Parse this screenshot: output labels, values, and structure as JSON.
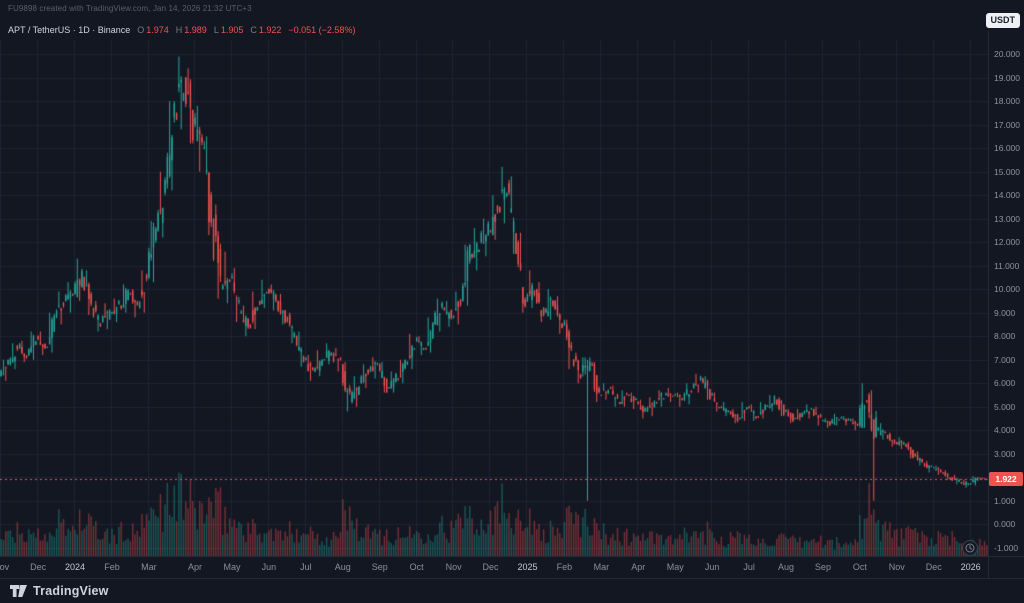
{
  "header": {
    "watermark": "FU9898 created with TradingView.com, Jan 14, 2026 21:32 UTC+3",
    "legend_title": "APT / TetherUS · 1D · Binance",
    "ohlc": {
      "o_label": "O",
      "o": "1.974",
      "h_label": "H",
      "h": "1.989",
      "l_label": "L",
      "l": "1.905",
      "c_label": "C",
      "c": "1.922",
      "change": "−0.051 (−2.58%)"
    },
    "currency_button": "USDT"
  },
  "footer": {
    "brand": "TradingView"
  },
  "colors": {
    "background": "#131722",
    "grid": "#1e2433",
    "up": "#26a69a",
    "down": "#ef5350",
    "volume_up": "rgba(38,166,154,0.45)",
    "volume_down": "rgba(239,83,80,0.45)",
    "axis_text": "#8f94a1",
    "last_price": "#ef5350"
  },
  "chart_data": {
    "type": "candlestick",
    "symbol": "APT/USDT",
    "interval_shown": "1D",
    "sampling": "weekly approximation of the daily candles visible in the screenshot",
    "last_price": "1.922",
    "last_price_value": 1.922,
    "y_axis": {
      "min": -1.35,
      "max": 20.6,
      "tick_step": 1,
      "ticks": [
        {
          "value": 20,
          "label": "20.000"
        },
        {
          "value": 19,
          "label": "19.000"
        },
        {
          "value": 18,
          "label": "18.000"
        },
        {
          "value": 17,
          "label": "17.000"
        },
        {
          "value": 16,
          "label": "16.000"
        },
        {
          "value": 15,
          "label": "15.000"
        },
        {
          "value": 14,
          "label": "14.000"
        },
        {
          "value": 13,
          "label": "13.000"
        },
        {
          "value": 12,
          "label": "12.000"
        },
        {
          "value": 11,
          "label": "11.000"
        },
        {
          "value": 10,
          "label": "10.000"
        },
        {
          "value": 9,
          "label": "9.000"
        },
        {
          "value": 8,
          "label": "8.000"
        },
        {
          "value": 7,
          "label": "7.000"
        },
        {
          "value": 6,
          "label": "6.000"
        },
        {
          "value": 5,
          "label": "5.000"
        },
        {
          "value": 4,
          "label": "4.000"
        },
        {
          "value": 3,
          "label": "3.000"
        },
        {
          "value": 2,
          "label": "2.000"
        },
        {
          "value": 1,
          "label": "1.000"
        },
        {
          "value": 0,
          "label": "0.000"
        },
        {
          "value": -1,
          "label": "-1.000"
        }
      ]
    },
    "x_axis": {
      "months": [
        {
          "label": "Nov",
          "i": 0,
          "year": false
        },
        {
          "label": "Dec",
          "i": 4,
          "year": false
        },
        {
          "label": "2024",
          "i": 8,
          "year": true
        },
        {
          "label": "Feb",
          "i": 12,
          "year": false
        },
        {
          "label": "Mar",
          "i": 16,
          "year": false
        },
        {
          "label": "Apr",
          "i": 21,
          "year": false
        },
        {
          "label": "May",
          "i": 25,
          "year": false
        },
        {
          "label": "Jun",
          "i": 29,
          "year": false
        },
        {
          "label": "Jul",
          "i": 33,
          "year": false
        },
        {
          "label": "Aug",
          "i": 37,
          "year": false
        },
        {
          "label": "Sep",
          "i": 41,
          "year": false
        },
        {
          "label": "Oct",
          "i": 45,
          "year": false
        },
        {
          "label": "Nov",
          "i": 49,
          "year": false
        },
        {
          "label": "Dec",
          "i": 53,
          "year": false
        },
        {
          "label": "2025",
          "i": 57,
          "year": true
        },
        {
          "label": "Feb",
          "i": 61,
          "year": false
        },
        {
          "label": "Mar",
          "i": 65,
          "year": false
        },
        {
          "label": "Apr",
          "i": 69,
          "year": false
        },
        {
          "label": "May",
          "i": 73,
          "year": false
        },
        {
          "label": "Jun",
          "i": 77,
          "year": false
        },
        {
          "label": "Jul",
          "i": 81,
          "year": false
        },
        {
          "label": "Aug",
          "i": 85,
          "year": false
        },
        {
          "label": "Sep",
          "i": 89,
          "year": false
        },
        {
          "label": "Oct",
          "i": 93,
          "year": false
        },
        {
          "label": "Nov",
          "i": 97,
          "year": false
        },
        {
          "label": "Dec",
          "i": 101,
          "year": false
        },
        {
          "label": "2026",
          "i": 105,
          "year": true
        }
      ]
    },
    "candles": [
      [
        6.3,
        7.0,
        6.1,
        6.8,
        30
      ],
      [
        6.8,
        7.7,
        6.6,
        7.5,
        35
      ],
      [
        7.5,
        7.8,
        6.9,
        7.2,
        28
      ],
      [
        7.2,
        8.2,
        7.0,
        8.0,
        40
      ],
      [
        8.0,
        8.2,
        7.2,
        7.5,
        32
      ],
      [
        7.5,
        9.0,
        7.3,
        8.8,
        45
      ],
      [
        8.8,
        9.9,
        8.5,
        9.5,
        50
      ],
      [
        9.5,
        10.3,
        9.0,
        9.8,
        42
      ],
      [
        9.8,
        11.3,
        9.5,
        10.5,
        55
      ],
      [
        10.5,
        10.8,
        8.9,
        9.2,
        48
      ],
      [
        9.2,
        9.5,
        8.2,
        8.6,
        38
      ],
      [
        8.6,
        9.4,
        8.3,
        9.0,
        30
      ],
      [
        9.0,
        9.6,
        8.6,
        9.3,
        33
      ],
      [
        9.3,
        10.2,
        9.0,
        9.8,
        36
      ],
      [
        9.8,
        10.0,
        8.8,
        9.2,
        34
      ],
      [
        9.2,
        10.8,
        9.0,
        10.5,
        44
      ],
      [
        10.5,
        12.9,
        10.3,
        12.5,
        60
      ],
      [
        12.5,
        15.0,
        12.2,
        14.5,
        75
      ],
      [
        14.5,
        18.0,
        14.2,
        17.5,
        85
      ],
      [
        17.5,
        19.9,
        16.8,
        19.0,
        95
      ],
      [
        19.0,
        19.4,
        16.2,
        17.0,
        80
      ],
      [
        17.0,
        17.8,
        15.0,
        16.0,
        70
      ],
      [
        16.0,
        16.5,
        12.3,
        13.0,
        75
      ],
      [
        13.0,
        13.6,
        9.6,
        10.0,
        72
      ],
      [
        10.0,
        11.6,
        9.4,
        10.5,
        58
      ],
      [
        10.5,
        10.9,
        8.6,
        9.0,
        50
      ],
      [
        9.0,
        9.3,
        8.0,
        8.5,
        44
      ],
      [
        8.5,
        9.9,
        8.3,
        9.5,
        40
      ],
      [
        9.5,
        10.4,
        9.2,
        10.0,
        38
      ],
      [
        10.0,
        10.2,
        9.1,
        9.5,
        34
      ],
      [
        9.5,
        9.8,
        8.5,
        8.8,
        32
      ],
      [
        8.8,
        9.0,
        7.7,
        8.0,
        36
      ],
      [
        8.0,
        8.2,
        6.7,
        7.0,
        42
      ],
      [
        7.0,
        7.2,
        6.1,
        6.5,
        38
      ],
      [
        6.5,
        7.4,
        6.3,
        7.0,
        30
      ],
      [
        7.0,
        7.7,
        6.8,
        7.3,
        28
      ],
      [
        7.3,
        7.5,
        6.5,
        6.8,
        30
      ],
      [
        6.8,
        6.9,
        4.8,
        5.2,
        65
      ],
      [
        5.2,
        6.3,
        5.0,
        6.0,
        45
      ],
      [
        6.0,
        6.8,
        5.8,
        6.5,
        35
      ],
      [
        6.5,
        7.1,
        6.2,
        6.8,
        30
      ],
      [
        6.8,
        6.9,
        5.6,
        5.8,
        34
      ],
      [
        5.8,
        6.5,
        5.6,
        6.2,
        28
      ],
      [
        6.2,
        7.0,
        6.0,
        6.8,
        30
      ],
      [
        6.8,
        8.1,
        6.6,
        7.8,
        40
      ],
      [
        7.8,
        8.0,
        7.2,
        7.5,
        32
      ],
      [
        7.5,
        8.8,
        7.3,
        8.5,
        42
      ],
      [
        8.5,
        9.6,
        8.2,
        9.2,
        48
      ],
      [
        9.2,
        9.5,
        8.4,
        8.8,
        40
      ],
      [
        8.8,
        9.9,
        8.5,
        9.5,
        45
      ],
      [
        9.5,
        11.9,
        9.3,
        11.5,
        68
      ],
      [
        11.5,
        12.6,
        10.8,
        12.0,
        60
      ],
      [
        12.0,
        13.0,
        11.4,
        12.5,
        55
      ],
      [
        12.5,
        14.0,
        12.1,
        13.5,
        65
      ],
      [
        13.5,
        15.2,
        12.8,
        14.5,
        80
      ],
      [
        14.5,
        14.8,
        11.5,
        12.0,
        70
      ],
      [
        12.0,
        12.4,
        9.0,
        9.5,
        66
      ],
      [
        9.5,
        10.8,
        9.2,
        10.0,
        50
      ],
      [
        10.0,
        10.3,
        8.6,
        9.0,
        45
      ],
      [
        9.0,
        10.0,
        8.7,
        9.5,
        38
      ],
      [
        9.5,
        9.7,
        8.1,
        8.5,
        40
      ],
      [
        8.5,
        8.7,
        6.6,
        7.0,
        55
      ],
      [
        7.0,
        7.3,
        6.0,
        6.5,
        48
      ],
      [
        6.5,
        7.1,
        1.0,
        6.8,
        60
      ],
      [
        6.8,
        6.9,
        5.2,
        5.5,
        42
      ],
      [
        5.5,
        6.0,
        5.3,
        5.8,
        35
      ],
      [
        5.8,
        5.9,
        5.0,
        5.2,
        33
      ],
      [
        5.2,
        5.7,
        5.0,
        5.5,
        30
      ],
      [
        5.5,
        5.6,
        4.9,
        5.2,
        28
      ],
      [
        5.2,
        5.3,
        4.5,
        4.8,
        32
      ],
      [
        4.8,
        5.4,
        4.6,
        5.2,
        28
      ],
      [
        5.2,
        5.7,
        5.0,
        5.5,
        26
      ],
      [
        5.5,
        5.8,
        5.2,
        5.5,
        24
      ],
      [
        5.5,
        5.6,
        5.0,
        5.3,
        26
      ],
      [
        5.3,
        6.0,
        5.1,
        5.8,
        30
      ],
      [
        5.8,
        6.4,
        5.6,
        6.2,
        34
      ],
      [
        6.2,
        6.3,
        5.3,
        5.5,
        36
      ],
      [
        5.5,
        5.6,
        4.8,
        5.0,
        30
      ],
      [
        5.0,
        5.2,
        4.6,
        4.8,
        26
      ],
      [
        4.8,
        4.9,
        4.3,
        4.5,
        28
      ],
      [
        4.5,
        5.2,
        4.4,
        5.0,
        26
      ],
      [
        5.0,
        5.1,
        4.4,
        4.6,
        24
      ],
      [
        4.6,
        5.2,
        4.5,
        5.0,
        22
      ],
      [
        5.0,
        5.5,
        4.8,
        5.3,
        26
      ],
      [
        5.3,
        5.4,
        4.6,
        4.8,
        24
      ],
      [
        4.8,
        4.9,
        4.3,
        4.5,
        22
      ],
      [
        4.5,
        4.9,
        4.4,
        4.7,
        20
      ],
      [
        4.7,
        5.1,
        4.5,
        4.9,
        22
      ],
      [
        4.9,
        5.0,
        4.2,
        4.4,
        24
      ],
      [
        4.4,
        4.5,
        4.1,
        4.3,
        20
      ],
      [
        4.3,
        4.7,
        4.2,
        4.5,
        20
      ],
      [
        4.5,
        4.6,
        4.2,
        4.4,
        18
      ],
      [
        4.4,
        4.5,
        4.0,
        4.2,
        20
      ],
      [
        4.2,
        6.0,
        4.1,
        5.5,
        55
      ],
      [
        5.5,
        5.7,
        1.0,
        4.0,
        90
      ],
      [
        4.0,
        4.3,
        3.6,
        3.8,
        45
      ],
      [
        3.8,
        3.9,
        3.3,
        3.5,
        38
      ],
      [
        3.5,
        3.7,
        3.2,
        3.4,
        30
      ],
      [
        3.4,
        3.5,
        2.8,
        3.0,
        34
      ],
      [
        3.0,
        3.1,
        2.5,
        2.6,
        32
      ],
      [
        2.6,
        2.7,
        2.2,
        2.4,
        28
      ],
      [
        2.4,
        2.5,
        2.1,
        2.2,
        26
      ],
      [
        2.2,
        2.3,
        1.9,
        2.0,
        24
      ],
      [
        2.0,
        2.1,
        1.7,
        1.8,
        26
      ],
      [
        1.8,
        1.9,
        1.55,
        1.7,
        28
      ],
      [
        1.7,
        2.05,
        1.65,
        1.974,
        22
      ],
      [
        1.974,
        1.989,
        1.905,
        1.922,
        18
      ]
    ]
  }
}
